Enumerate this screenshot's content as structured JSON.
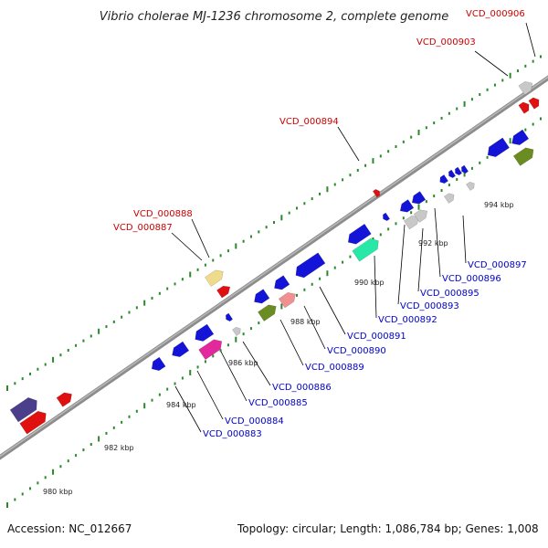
{
  "title": "Vibrio cholerae MJ-1236 chromosome 2, complete genome",
  "footer": {
    "accession": "Accession: NC_012667",
    "summary": "Topology: circular; Length: 1,086,784 bp; Genes: 1,008"
  },
  "colors": {
    "backbone": "#8c8c8c",
    "ticks": "#2a8a2a",
    "label_plus": "#cc0000",
    "label_minus": "#0000cc",
    "leader": "#000000"
  },
  "ticks": [
    {
      "kbp": 980,
      "label": "980 kbp"
    },
    {
      "kbp": 982,
      "label": "982 kbp"
    },
    {
      "kbp": 984,
      "label": "984 kbp"
    },
    {
      "kbp": 986,
      "label": "986 kbp"
    },
    {
      "kbp": 988,
      "label": "988 kbp"
    },
    {
      "kbp": 990,
      "label": "990 kbp"
    },
    {
      "kbp": 992,
      "label": "992 kbp"
    },
    {
      "kbp": 994,
      "label": "994 kbp"
    }
  ],
  "gene_labels": [
    {
      "id": "VCD_000906",
      "strand": "+"
    },
    {
      "id": "VCD_000903",
      "strand": "+"
    },
    {
      "id": "VCD_000894",
      "strand": "+"
    },
    {
      "id": "VCD_000888",
      "strand": "+"
    },
    {
      "id": "VCD_000887",
      "strand": "+"
    },
    {
      "id": "VCD_000897",
      "strand": "-"
    },
    {
      "id": "VCD_000896",
      "strand": "-"
    },
    {
      "id": "VCD_000895",
      "strand": "-"
    },
    {
      "id": "VCD_000893",
      "strand": "-"
    },
    {
      "id": "VCD_000892",
      "strand": "-"
    },
    {
      "id": "VCD_000891",
      "strand": "-"
    },
    {
      "id": "VCD_000890",
      "strand": "-"
    },
    {
      "id": "VCD_000889",
      "strand": "-"
    },
    {
      "id": "VCD_000886",
      "strand": "-"
    },
    {
      "id": "VCD_000885",
      "strand": "-"
    },
    {
      "id": "VCD_000884",
      "strand": "-"
    },
    {
      "id": "VCD_000883",
      "strand": "-"
    }
  ]
}
